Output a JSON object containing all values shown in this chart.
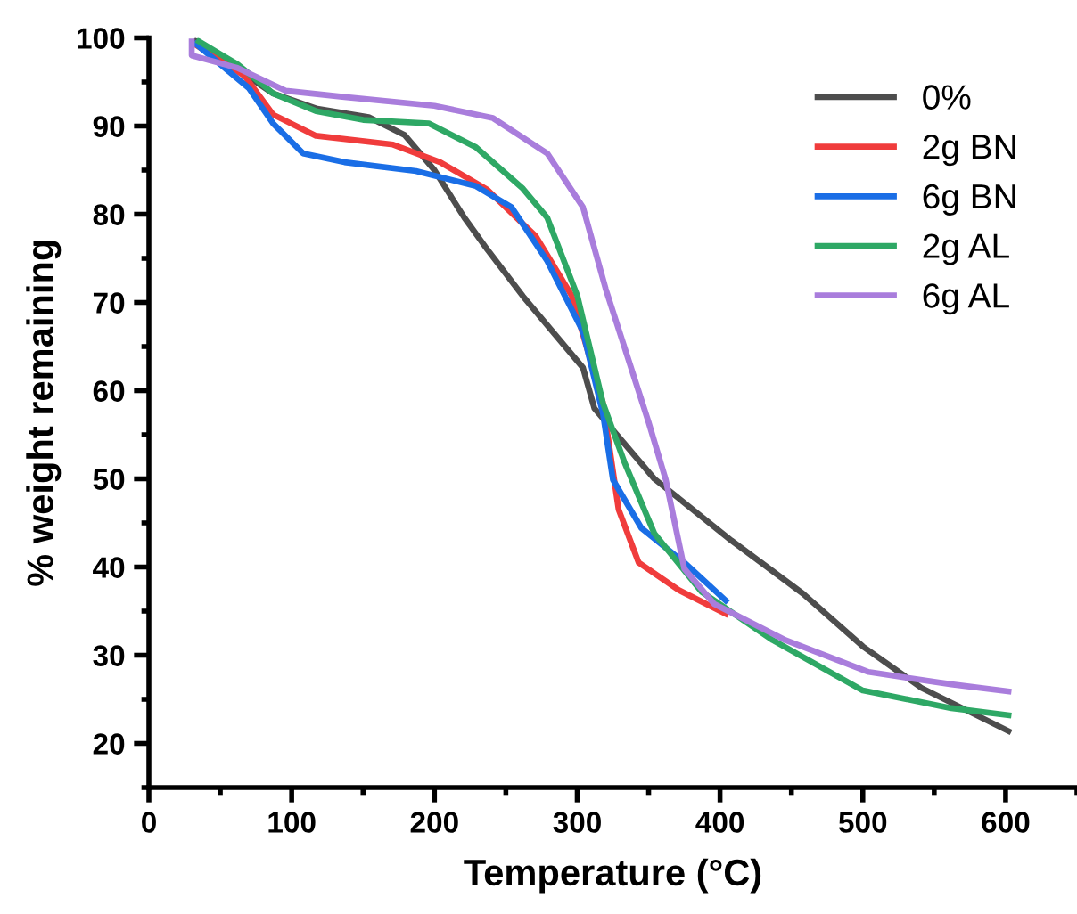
{
  "chart_data": {
    "type": "line",
    "xlabel": "Temperature (°C)",
    "ylabel": "% weight remaining",
    "xlim": [
      0,
      650
    ],
    "xticks": [
      0,
      100,
      200,
      300,
      400,
      500,
      600
    ],
    "ylim": [
      15,
      100
    ],
    "yticks": [
      20,
      30,
      40,
      50,
      60,
      70,
      80,
      90,
      100
    ],
    "grid": false,
    "legend": "top right",
    "marker": "none",
    "line_style": "solid",
    "series": [
      {
        "name": "0%",
        "color": "#4d4d4d",
        "x": [
          33,
          87,
          117,
          154,
          179,
          200,
          221,
          237,
          262,
          304,
          312,
          354,
          408,
          458,
          500,
          541,
          602
        ],
        "values": [
          99.6,
          93.7,
          92,
          91,
          89,
          85,
          79.6,
          76,
          70.7,
          62.6,
          58,
          50,
          43,
          37,
          31,
          26.3,
          21.4
        ]
      },
      {
        "name": "2g BN",
        "color": "#f03c3c",
        "x": [
          33,
          67,
          87,
          117,
          171,
          204,
          237,
          271,
          296,
          318,
          329,
          343,
          371,
          404
        ],
        "values": [
          99.2,
          95.7,
          91.3,
          88.9,
          87.9,
          85.9,
          82.8,
          77.5,
          70.8,
          58.6,
          46.5,
          40.5,
          37.4,
          34.7
        ]
      },
      {
        "name": "6g BN",
        "color": "#1a6ee6",
        "x": [
          33,
          70,
          87,
          108,
          137,
          187,
          229,
          254,
          279,
          304,
          318,
          325,
          345,
          375,
          404
        ],
        "values": [
          99.3,
          94.3,
          90.3,
          86.9,
          85.9,
          84.9,
          83.2,
          80.8,
          74.7,
          66.7,
          57.4,
          49.9,
          44.4,
          40.5,
          36.2
        ]
      },
      {
        "name": "2g AL",
        "color": "#2ea865",
        "x": [
          35,
          62,
          87,
          117,
          150,
          196,
          229,
          262,
          279,
          300,
          318,
          333,
          354,
          387,
          437,
          500,
          562,
          602
        ],
        "values": [
          99.6,
          97,
          93.7,
          91.7,
          90.7,
          90.3,
          87.6,
          82.9,
          79.6,
          70.8,
          58.6,
          51.9,
          43.8,
          37.2,
          31.7,
          26,
          24,
          23.2
        ]
      },
      {
        "name": "6g AL",
        "color": "#a97ddc",
        "x": [
          30,
          30,
          62,
          96,
          137,
          200,
          241,
          279,
          304,
          320,
          350,
          362,
          375,
          396,
          446,
          504,
          562,
          602
        ],
        "values": [
          99.6,
          98,
          96.6,
          94,
          93.3,
          92.3,
          90.9,
          86.9,
          80.8,
          71.5,
          56.4,
          49.9,
          39.8,
          35.8,
          31.7,
          28.1,
          26.7,
          25.9
        ]
      }
    ]
  }
}
